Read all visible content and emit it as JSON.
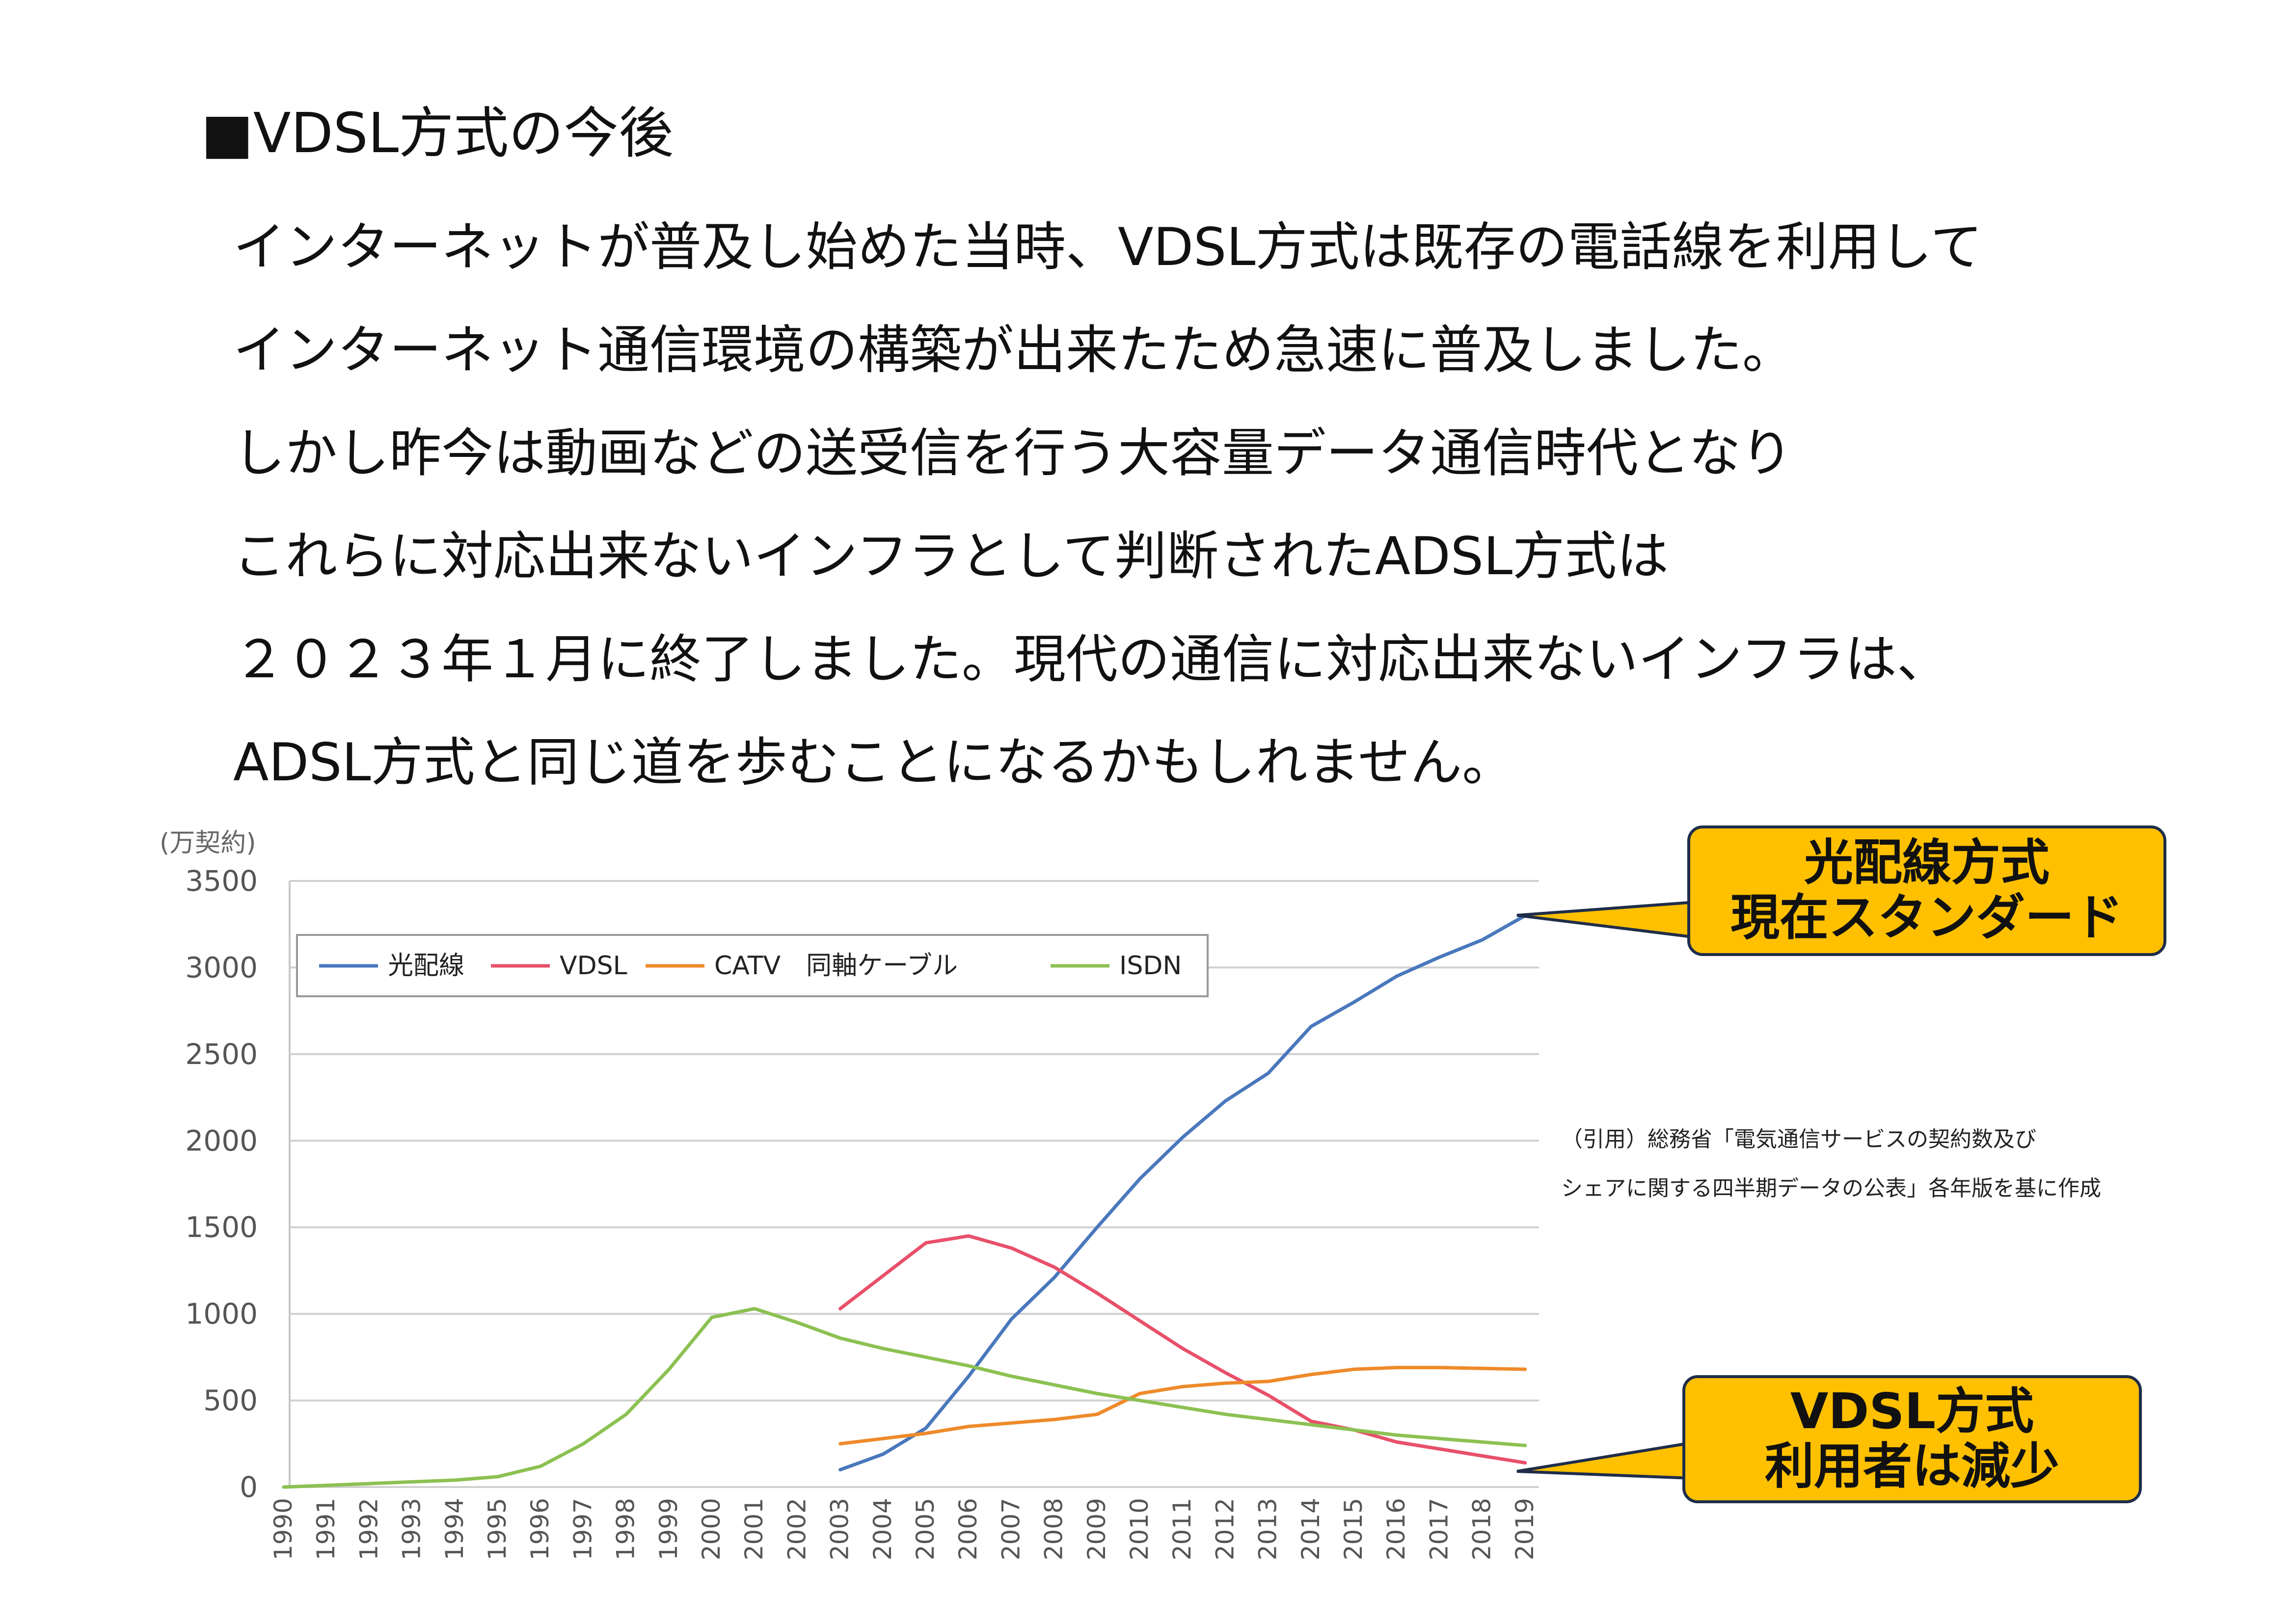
{
  "heading": "■VDSL方式の今後",
  "paragraph": [
    "インターネットが普及し始めた当時、VDSL方式は既存の電話線を利用して",
    "インターネット通信環境の構築が出来たため急速に普及しました。",
    "しかし昨今は動画などの送受信を行う大容量データ通信時代となり",
    "これらに対応出来ないインフラとして判断されたADSL方式は",
    "２０２３年１月に終了しました。現代の通信に対応出来ないインフラは、",
    "ADSL方式と同じ道を歩むことになるかもしれません。"
  ],
  "callouts": {
    "fiber": {
      "line1": "光配線方式",
      "line2": "現在スタンダード"
    },
    "vdsl": {
      "line1": "VDSL方式",
      "line2": "利用者は減少"
    }
  },
  "citation": {
    "line1": "（引用）総務省「電気通信サービスの契約数及び",
    "line2": "シェアに関する四半期データの公表」各年版を基に作成"
  },
  "colors": {
    "fiber": "#4a78bd",
    "vdsl": "#e8506a",
    "catv": "#ee8a2a",
    "isdn": "#8cc152",
    "callout_fill": "#ffc000",
    "callout_border": "#1f2d4a",
    "grid": "#d0d0d0"
  },
  "chart_data": {
    "type": "line",
    "unit_label": "(万契約)",
    "ylim": [
      0,
      3500
    ],
    "yticks": [
      "3500",
      "3000",
      "2500",
      "2000",
      "1500",
      "1000",
      "500",
      "0"
    ],
    "grid": true,
    "legend_position": "top-left",
    "x": [
      "1990",
      "1991",
      "1992",
      "1993",
      "1994",
      "1995",
      "1996",
      "1997",
      "1998",
      "1999",
      "2000",
      "2001",
      "2002",
      "2003",
      "2004",
      "2005",
      "2006",
      "2007",
      "2008",
      "2009",
      "2010",
      "2011",
      "2012",
      "2013",
      "2014",
      "2015",
      "2016",
      "2017",
      "2018",
      "2019"
    ],
    "series": [
      {
        "name": "光配線",
        "color_key": "fiber",
        "values": [
          null,
          null,
          null,
          null,
          null,
          null,
          null,
          null,
          null,
          null,
          null,
          null,
          null,
          100,
          190,
          340,
          640,
          970,
          1210,
          1500,
          1780,
          2020,
          2230,
          2390,
          2660,
          2800,
          2950,
          3060,
          3160,
          3300
        ]
      },
      {
        "name": "VDSL",
        "color_key": "vdsl",
        "values": [
          null,
          null,
          null,
          null,
          null,
          null,
          null,
          null,
          null,
          null,
          null,
          null,
          null,
          1030,
          1220,
          1410,
          1450,
          1380,
          1270,
          1120,
          960,
          800,
          660,
          530,
          380,
          330,
          260,
          220,
          180,
          140
        ]
      },
      {
        "name": "CATV　同軸ケーブル",
        "color_key": "catv",
        "values": [
          null,
          null,
          null,
          null,
          null,
          null,
          null,
          null,
          null,
          null,
          null,
          null,
          null,
          250,
          280,
          310,
          350,
          370,
          390,
          420,
          540,
          580,
          600,
          610,
          650,
          680,
          690,
          690,
          685,
          680
        ]
      },
      {
        "name": "ISDN",
        "color_key": "isdn",
        "values": [
          0,
          10,
          20,
          30,
          40,
          60,
          120,
          250,
          420,
          680,
          980,
          1030,
          950,
          860,
          800,
          750,
          700,
          640,
          590,
          540,
          500,
          460,
          420,
          390,
          360,
          330,
          300,
          280,
          260,
          240
        ]
      }
    ]
  }
}
